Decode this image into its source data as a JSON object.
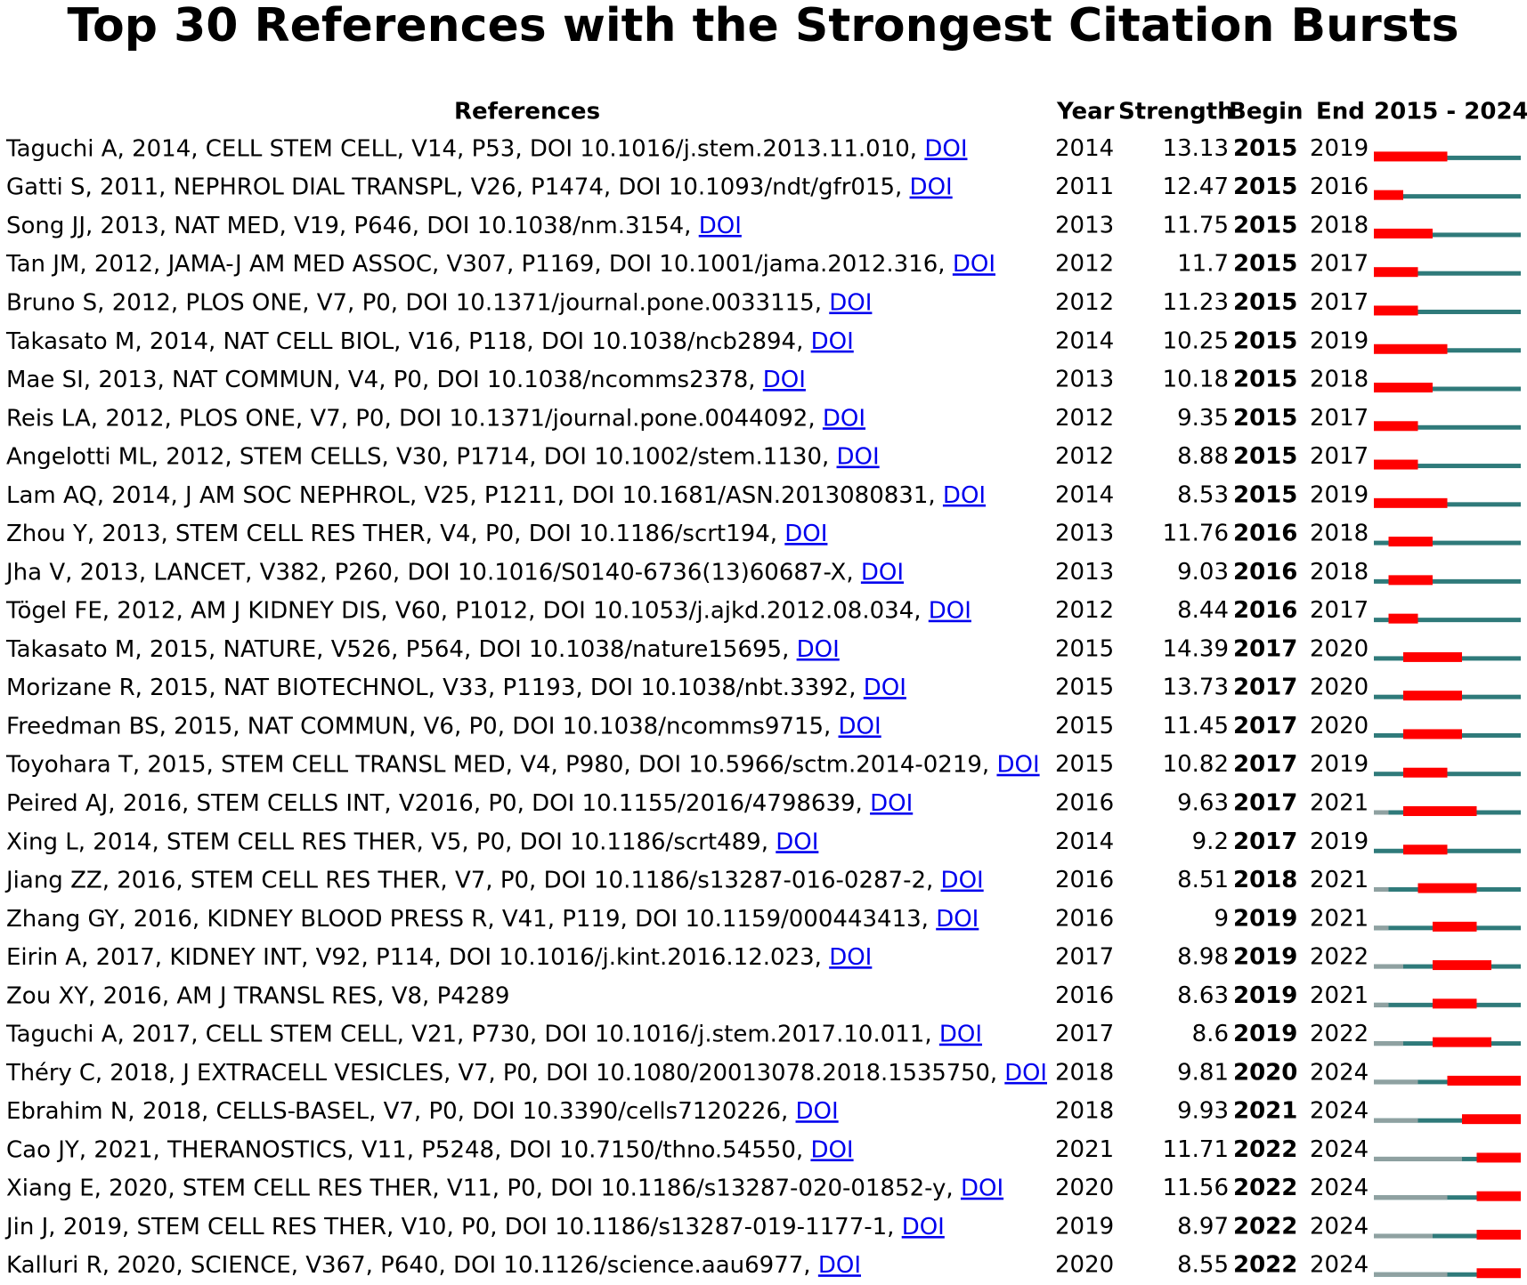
{
  "title": "Top 30 References with the Strongest Citation Bursts",
  "table": {
    "headers": {
      "references": "References",
      "year": "Year",
      "strength": "Strength",
      "begin": "Begin",
      "end": "End",
      "timeline": "2015 - 2024"
    },
    "timeline": {
      "start": 2015,
      "end": 2024
    },
    "colors": {
      "burst": "#ff0000",
      "active": "#2f7a7a",
      "before": "#8fa1a1"
    },
    "rows": [
      {
        "reference": "Taguchi A, 2014, CELL STEM CELL, V14, P53, DOI 10.1016/j.stem.2013.11.010, ",
        "link": "DOI",
        "year": 2014,
        "strength": 13.13,
        "begin": 2015,
        "end": 2019
      },
      {
        "reference": "Gatti S, 2011, NEPHROL DIAL TRANSPL, V26, P1474, DOI 10.1093/ndt/gfr015, ",
        "link": "DOI",
        "year": 2011,
        "strength": 12.47,
        "begin": 2015,
        "end": 2016
      },
      {
        "reference": "Song JJ, 2013, NAT MED, V19, P646, DOI 10.1038/nm.3154, ",
        "link": "DOI",
        "year": 2013,
        "strength": 11.75,
        "begin": 2015,
        "end": 2018
      },
      {
        "reference": "Tan JM, 2012, JAMA-J AM MED ASSOC, V307, P1169, DOI 10.1001/jama.2012.316, ",
        "link": "DOI",
        "year": 2012,
        "strength": 11.7,
        "begin": 2015,
        "end": 2017
      },
      {
        "reference": "Bruno S, 2012, PLOS ONE, V7, P0, DOI 10.1371/journal.pone.0033115, ",
        "link": "DOI",
        "year": 2012,
        "strength": 11.23,
        "begin": 2015,
        "end": 2017
      },
      {
        "reference": "Takasato M, 2014, NAT CELL BIOL, V16, P118, DOI 10.1038/ncb2894, ",
        "link": "DOI",
        "year": 2014,
        "strength": 10.25,
        "begin": 2015,
        "end": 2019
      },
      {
        "reference": "Mae SI, 2013, NAT COMMUN, V4, P0, DOI 10.1038/ncomms2378, ",
        "link": "DOI",
        "year": 2013,
        "strength": 10.18,
        "begin": 2015,
        "end": 2018
      },
      {
        "reference": "Reis LA, 2012, PLOS ONE, V7, P0, DOI 10.1371/journal.pone.0044092, ",
        "link": "DOI",
        "year": 2012,
        "strength": 9.35,
        "begin": 2015,
        "end": 2017
      },
      {
        "reference": "Angelotti ML, 2012, STEM CELLS, V30, P1714, DOI 10.1002/stem.1130, ",
        "link": "DOI",
        "year": 2012,
        "strength": 8.88,
        "begin": 2015,
        "end": 2017
      },
      {
        "reference": "Lam AQ, 2014, J AM SOC NEPHROL, V25, P1211, DOI 10.1681/ASN.2013080831, ",
        "link": "DOI",
        "year": 2014,
        "strength": 8.53,
        "begin": 2015,
        "end": 2019
      },
      {
        "reference": "Zhou Y, 2013, STEM CELL RES THER, V4, P0, DOI 10.1186/scrt194, ",
        "link": "DOI",
        "year": 2013,
        "strength": 11.76,
        "begin": 2016,
        "end": 2018
      },
      {
        "reference": "Jha V, 2013, LANCET, V382, P260, DOI 10.1016/S0140-6736(13)60687-X, ",
        "link": "DOI",
        "year": 2013,
        "strength": 9.03,
        "begin": 2016,
        "end": 2018
      },
      {
        "reference": "Tögel FE, 2012, AM J KIDNEY DIS, V60, P1012, DOI 10.1053/j.ajkd.2012.08.034, ",
        "link": "DOI",
        "year": 2012,
        "strength": 8.44,
        "begin": 2016,
        "end": 2017
      },
      {
        "reference": "Takasato M, 2015, NATURE, V526, P564, DOI 10.1038/nature15695, ",
        "link": "DOI",
        "year": 2015,
        "strength": 14.39,
        "begin": 2017,
        "end": 2020
      },
      {
        "reference": "Morizane R, 2015, NAT BIOTECHNOL, V33, P1193, DOI 10.1038/nbt.3392, ",
        "link": "DOI",
        "year": 2015,
        "strength": 13.73,
        "begin": 2017,
        "end": 2020
      },
      {
        "reference": "Freedman BS, 2015, NAT COMMUN, V6, P0, DOI 10.1038/ncomms9715, ",
        "link": "DOI",
        "year": 2015,
        "strength": 11.45,
        "begin": 2017,
        "end": 2020
      },
      {
        "reference": "Toyohara T, 2015, STEM CELL TRANSL MED, V4, P980, DOI 10.5966/sctm.2014-0219, ",
        "link": "DOI",
        "year": 2015,
        "strength": 10.82,
        "begin": 2017,
        "end": 2019
      },
      {
        "reference": "Peired AJ, 2016, STEM CELLS INT, V2016, P0, DOI 10.1155/2016/4798639, ",
        "link": "DOI",
        "year": 2016,
        "strength": 9.63,
        "begin": 2017,
        "end": 2021
      },
      {
        "reference": "Xing L, 2014, STEM CELL RES THER, V5, P0, DOI 10.1186/scrt489, ",
        "link": "DOI",
        "year": 2014,
        "strength": 9.2,
        "begin": 2017,
        "end": 2019
      },
      {
        "reference": "Jiang ZZ, 2016, STEM CELL RES THER, V7, P0, DOI 10.1186/s13287-016-0287-2, ",
        "link": "DOI",
        "year": 2016,
        "strength": 8.51,
        "begin": 2018,
        "end": 2021
      },
      {
        "reference": "Zhang GY, 2016, KIDNEY BLOOD PRESS R, V41, P119, DOI 10.1159/000443413, ",
        "link": "DOI",
        "year": 2016,
        "strength": 9,
        "begin": 2019,
        "end": 2021
      },
      {
        "reference": "Eirin A, 2017, KIDNEY INT, V92, P114, DOI 10.1016/j.kint.2016.12.023, ",
        "link": "DOI",
        "year": 2017,
        "strength": 8.98,
        "begin": 2019,
        "end": 2022
      },
      {
        "reference": "Zou XY, 2016, AM J TRANSL RES, V8, P4289",
        "year": 2016,
        "strength": 8.63,
        "begin": 2019,
        "end": 2021
      },
      {
        "reference": "Taguchi A, 2017, CELL STEM CELL, V21, P730, DOI 10.1016/j.stem.2017.10.011, ",
        "link": "DOI",
        "year": 2017,
        "strength": 8.6,
        "begin": 2019,
        "end": 2022
      },
      {
        "reference": "Théry C, 2018, J EXTRACELL VESICLES, V7, P0, DOI 10.1080/20013078.2018.1535750, ",
        "link": "DOI",
        "year": 2018,
        "strength": 9.81,
        "begin": 2020,
        "end": 2024
      },
      {
        "reference": "Ebrahim N, 2018, CELLS-BASEL, V7, P0, DOI 10.3390/cells7120226, ",
        "link": "DOI",
        "year": 2018,
        "strength": 9.93,
        "begin": 2021,
        "end": 2024
      },
      {
        "reference": "Cao JY, 2021, THERANOSTICS, V11, P5248, DOI 10.7150/thno.54550, ",
        "link": "DOI",
        "year": 2021,
        "strength": 11.71,
        "begin": 2022,
        "end": 2024
      },
      {
        "reference": "Xiang E, 2020, STEM CELL RES THER, V11, P0, DOI 10.1186/s13287-020-01852-y, ",
        "link": "DOI",
        "year": 2020,
        "strength": 11.56,
        "begin": 2022,
        "end": 2024
      },
      {
        "reference": "Jin J, 2019, STEM CELL RES THER, V10, P0, DOI 10.1186/s13287-019-1177-1, ",
        "link": "DOI",
        "year": 2019,
        "strength": 8.97,
        "begin": 2022,
        "end": 2024
      },
      {
        "reference": "Kalluri R, 2020, SCIENCE, V367, P640, DOI 10.1126/science.aau6977, ",
        "link": "DOI",
        "year": 2020,
        "strength": 8.55,
        "begin": 2022,
        "end": 2024
      }
    ]
  }
}
